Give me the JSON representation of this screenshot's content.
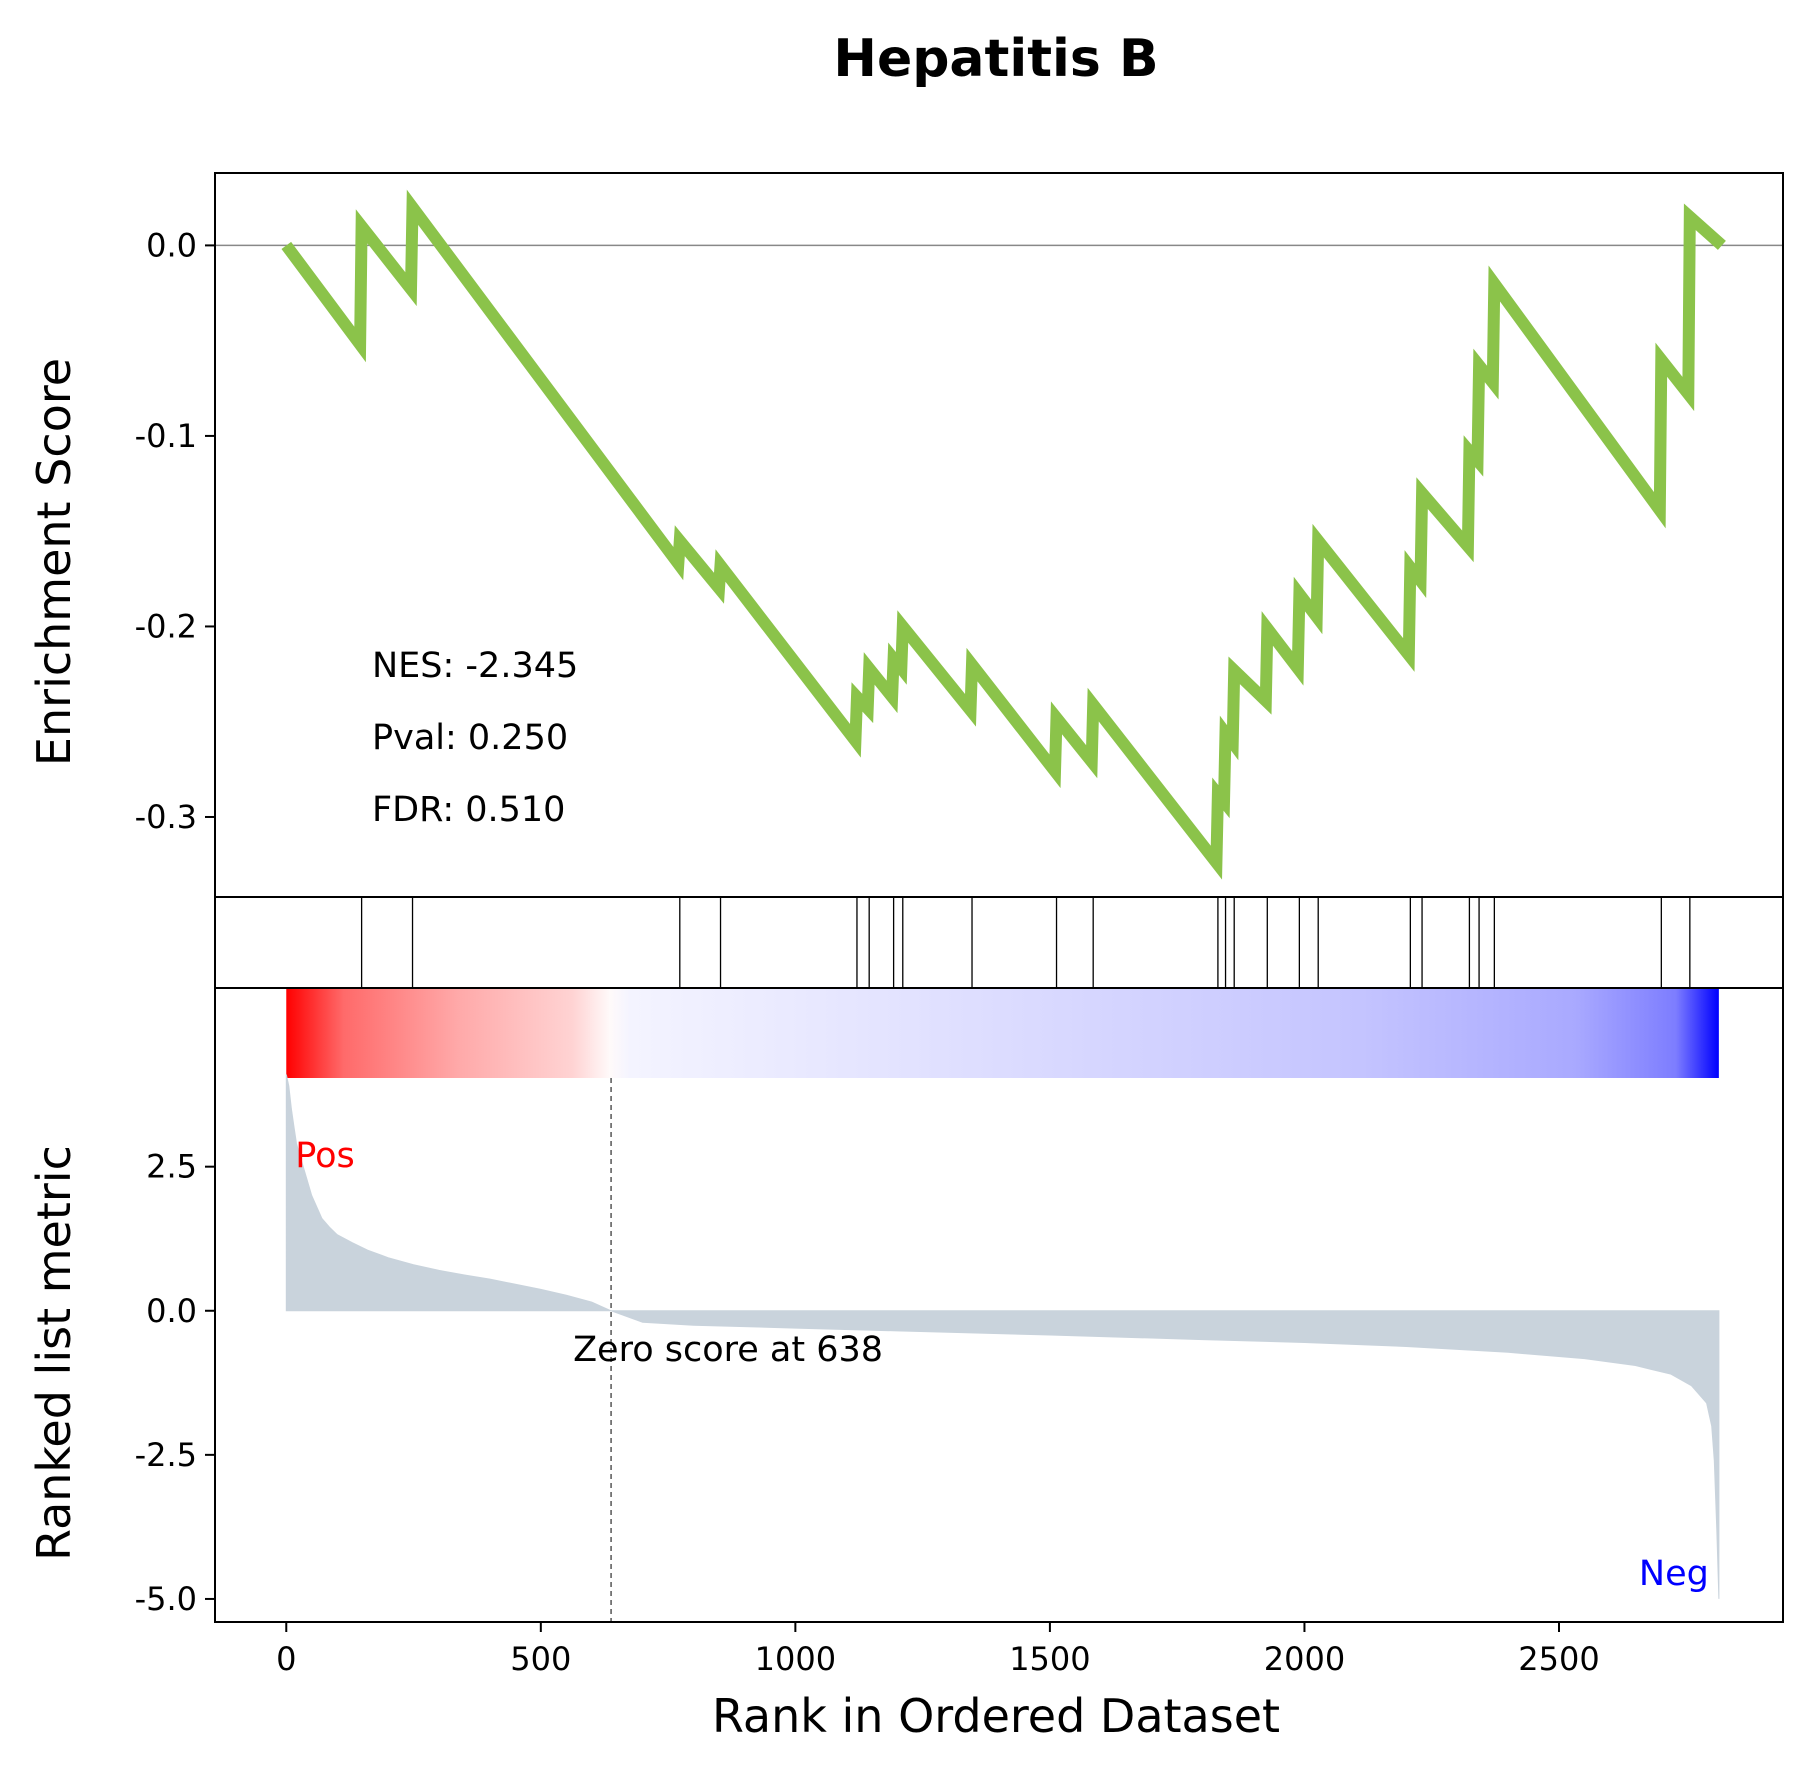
{
  "chart_data": {
    "type": "line",
    "title": "Hepatitis B",
    "xlabel": "Rank in Ordered Dataset",
    "xlim": [
      -140,
      2940
    ],
    "x_ticks": [
      0,
      500,
      1000,
      1500,
      2000,
      2500
    ],
    "stats": {
      "nes": "NES: -2.345",
      "pval": "Pval: 0.250",
      "fdr": "FDR: 0.510"
    },
    "enrichment": {
      "ylabel": "Enrichment Score",
      "ylim": [
        -0.342,
        0.038
      ],
      "y_ticks": [
        0.0,
        -0.1,
        -0.2,
        -0.3
      ],
      "y_tick_labels": [
        "0.0",
        "-0.1",
        "-0.2",
        "-0.3"
      ],
      "zero_line": true,
      "line_color": "#8bc34a",
      "hits": [
        148,
        248,
        773,
        853,
        1121,
        1145,
        1193,
        1211,
        1347,
        1513,
        1585,
        1830,
        1845,
        1862,
        1927,
        1990,
        2027,
        2208,
        2231,
        2324,
        2343,
        2373,
        2701,
        2757
      ],
      "points": [
        [
          0,
          0.0
        ],
        [
          145,
          -0.052
        ],
        [
          148,
          0.01
        ],
        [
          245,
          -0.023
        ],
        [
          248,
          0.02
        ],
        [
          770,
          -0.167
        ],
        [
          773,
          -0.155
        ],
        [
          850,
          -0.18
        ],
        [
          853,
          -0.168
        ],
        [
          1118,
          -0.26
        ],
        [
          1121,
          -0.237
        ],
        [
          1142,
          -0.243
        ],
        [
          1145,
          -0.222
        ],
        [
          1190,
          -0.237
        ],
        [
          1193,
          -0.217
        ],
        [
          1208,
          -0.222
        ],
        [
          1211,
          -0.2
        ],
        [
          1344,
          -0.244
        ],
        [
          1347,
          -0.22
        ],
        [
          1510,
          -0.276
        ],
        [
          1513,
          -0.248
        ],
        [
          1582,
          -0.271
        ],
        [
          1585,
          -0.241
        ],
        [
          1827,
          -0.324
        ],
        [
          1830,
          -0.288
        ],
        [
          1842,
          -0.292
        ],
        [
          1845,
          -0.256
        ],
        [
          1859,
          -0.261
        ],
        [
          1862,
          -0.223
        ],
        [
          1924,
          -0.239
        ],
        [
          1927,
          -0.201
        ],
        [
          1987,
          -0.222
        ],
        [
          1990,
          -0.183
        ],
        [
          2024,
          -0.195
        ],
        [
          2027,
          -0.155
        ],
        [
          2205,
          -0.215
        ],
        [
          2208,
          -0.169
        ],
        [
          2228,
          -0.176
        ],
        [
          2231,
          -0.13
        ],
        [
          2321,
          -0.158
        ],
        [
          2324,
          -0.108
        ],
        [
          2340,
          -0.113
        ],
        [
          2343,
          -0.063
        ],
        [
          2370,
          -0.072
        ],
        [
          2373,
          -0.02
        ],
        [
          2698,
          -0.139
        ],
        [
          2701,
          -0.06
        ],
        [
          2754,
          -0.078
        ],
        [
          2757,
          0.015
        ],
        [
          2820,
          0.0
        ]
      ]
    },
    "ranked_metric": {
      "ylabel": "Ranked list metric",
      "ylim": [
        -5.4,
        5.6
      ],
      "y_ticks": [
        2.5,
        0.0,
        -2.5,
        -5.0
      ],
      "y_tick_labels": [
        "2.5",
        "0.0",
        "-2.5",
        "-5.0"
      ],
      "fill_color": "#c9d3dc",
      "zero_cross_rank": 638,
      "zero_cross_label": "Zero score at 638",
      "pos_label": "Pos",
      "neg_label": "Neg",
      "pos_color": "#ff0000",
      "neg_color": "#0000ff",
      "curve": [
        [
          0,
          4.1
        ],
        [
          5,
          3.9
        ],
        [
          10,
          3.5
        ],
        [
          15,
          3.2
        ],
        [
          20,
          2.9
        ],
        [
          30,
          2.6
        ],
        [
          40,
          2.3
        ],
        [
          50,
          2.0
        ],
        [
          60,
          1.8
        ],
        [
          70,
          1.6
        ],
        [
          85,
          1.45
        ],
        [
          100,
          1.32
        ],
        [
          130,
          1.18
        ],
        [
          160,
          1.05
        ],
        [
          200,
          0.92
        ],
        [
          250,
          0.8
        ],
        [
          300,
          0.7
        ],
        [
          350,
          0.62
        ],
        [
          400,
          0.55
        ],
        [
          450,
          0.46
        ],
        [
          500,
          0.37
        ],
        [
          550,
          0.27
        ],
        [
          600,
          0.15
        ],
        [
          638,
          0.0
        ],
        [
          700,
          -0.2
        ],
        [
          800,
          -0.25
        ],
        [
          1000,
          -0.3
        ],
        [
          1200,
          -0.35
        ],
        [
          1500,
          -0.42
        ],
        [
          1800,
          -0.5
        ],
        [
          2000,
          -0.55
        ],
        [
          2200,
          -0.62
        ],
        [
          2400,
          -0.72
        ],
        [
          2550,
          -0.83
        ],
        [
          2650,
          -0.95
        ],
        [
          2720,
          -1.1
        ],
        [
          2760,
          -1.3
        ],
        [
          2790,
          -1.6
        ],
        [
          2800,
          -2.0
        ],
        [
          2805,
          -2.6
        ],
        [
          2810,
          -3.8
        ],
        [
          2814,
          -5.0
        ]
      ]
    }
  }
}
